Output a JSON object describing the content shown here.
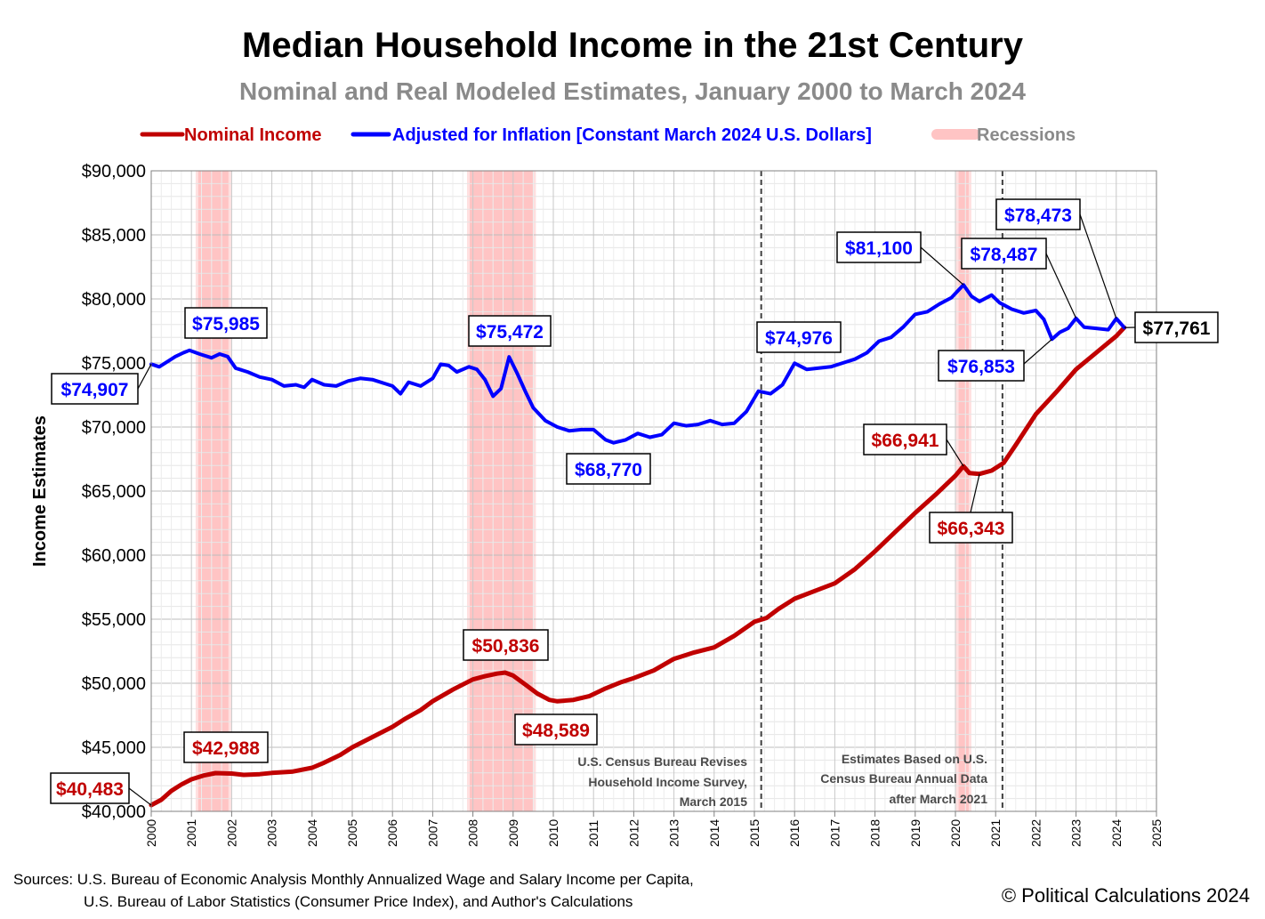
{
  "title": "Median Household Income in the 21st Century",
  "subtitle": "Nominal and Real Modeled Estimates, January 2000 to March 2024",
  "ylabel": "Income Estimates",
  "legend": [
    {
      "label": "Nominal Income",
      "color": "#c00000"
    },
    {
      "label": "Adjusted for Inflation [Constant March 2024 U.S. Dollars]",
      "color": "#0000ff"
    },
    {
      "label": "Recessions",
      "color": "#ffb3b3",
      "text_color": "#8a8a8a"
    }
  ],
  "notes": [
    [
      "U.S. Census Bureau Revises",
      "Household Income Survey,",
      "March 2015"
    ],
    [
      "Estimates Based on U.S.",
      "Census Bureau Annual Data",
      "after March 2021"
    ]
  ],
  "sources": [
    "Sources: U.S. Bureau of Economic Analysis Monthly Annualized Wage and Salary Income per Capita,",
    "U.S. Bureau of Labor Statistics (Consumer Price Index), and Author's Calculations"
  ],
  "copyright": "© Political Calculations 2024",
  "chart_data": {
    "type": "line",
    "x_range": [
      2000,
      2025
    ],
    "x_ticks": [
      "2000",
      "2001",
      "2002",
      "2003",
      "2004",
      "2005",
      "2006",
      "2007",
      "2008",
      "2009",
      "2010",
      "2011",
      "2012",
      "2013",
      "2014",
      "2015",
      "2016",
      "2017",
      "2018",
      "2019",
      "2020",
      "2021",
      "2022",
      "2023",
      "2024",
      "2025"
    ],
    "ylim": [
      40000,
      90000
    ],
    "y_ticks": [
      40000,
      45000,
      50000,
      55000,
      60000,
      65000,
      70000,
      75000,
      80000,
      85000,
      90000
    ],
    "y_tick_labels": [
      "$40,000",
      "$45,000",
      "$50,000",
      "$55,000",
      "$60,000",
      "$65,000",
      "$70,000",
      "$75,000",
      "$80,000",
      "$85,000",
      "$90,000"
    ],
    "grid": true,
    "legend_position": "top",
    "recessions": [
      [
        2001.17,
        2001.92
      ],
      [
        2007.92,
        2009.5
      ],
      [
        2020.08,
        2020.33
      ]
    ],
    "vertical_markers": [
      2015.17,
      2021.17
    ],
    "series": [
      {
        "name": "Nominal Income",
        "color": "#c00000",
        "points": [
          [
            2000.0,
            40483
          ],
          [
            2000.25,
            40900
          ],
          [
            2000.5,
            41600
          ],
          [
            2000.75,
            42100
          ],
          [
            2001.0,
            42500
          ],
          [
            2001.3,
            42800
          ],
          [
            2001.6,
            42988
          ],
          [
            2002.0,
            42950
          ],
          [
            2002.3,
            42850
          ],
          [
            2002.7,
            42900
          ],
          [
            2003.0,
            43000
          ],
          [
            2003.5,
            43100
          ],
          [
            2004.0,
            43400
          ],
          [
            2004.3,
            43800
          ],
          [
            2004.7,
            44400
          ],
          [
            2005.0,
            45000
          ],
          [
            2005.5,
            45800
          ],
          [
            2006.0,
            46600
          ],
          [
            2006.3,
            47200
          ],
          [
            2006.7,
            47900
          ],
          [
            2007.0,
            48600
          ],
          [
            2007.5,
            49500
          ],
          [
            2008.0,
            50300
          ],
          [
            2008.3,
            50550
          ],
          [
            2008.6,
            50750
          ],
          [
            2008.8,
            50836
          ],
          [
            2009.0,
            50600
          ],
          [
            2009.3,
            49900
          ],
          [
            2009.6,
            49200
          ],
          [
            2009.9,
            48700
          ],
          [
            2010.1,
            48589
          ],
          [
            2010.5,
            48700
          ],
          [
            2010.9,
            49000
          ],
          [
            2011.3,
            49600
          ],
          [
            2011.7,
            50100
          ],
          [
            2012.0,
            50400
          ],
          [
            2012.5,
            51000
          ],
          [
            2013.0,
            51900
          ],
          [
            2013.5,
            52400
          ],
          [
            2014.0,
            52800
          ],
          [
            2014.5,
            53700
          ],
          [
            2015.0,
            54800
          ],
          [
            2015.3,
            55100
          ],
          [
            2015.6,
            55800
          ],
          [
            2016.0,
            56600
          ],
          [
            2016.5,
            57200
          ],
          [
            2017.0,
            57800
          ],
          [
            2017.5,
            58900
          ],
          [
            2018.0,
            60300
          ],
          [
            2018.5,
            61800
          ],
          [
            2019.0,
            63300
          ],
          [
            2019.5,
            64700
          ],
          [
            2020.0,
            66200
          ],
          [
            2020.2,
            66941
          ],
          [
            2020.35,
            66400
          ],
          [
            2020.6,
            66343
          ],
          [
            2020.9,
            66600
          ],
          [
            2021.2,
            67200
          ],
          [
            2021.5,
            68600
          ],
          [
            2022.0,
            71000
          ],
          [
            2022.5,
            72700
          ],
          [
            2023.0,
            74500
          ],
          [
            2023.5,
            75800
          ],
          [
            2024.0,
            77100
          ],
          [
            2024.2,
            77761
          ]
        ]
      },
      {
        "name": "Adjusted for Inflation [Constant March 2024 U.S. Dollars]",
        "color": "#0000ff",
        "points": [
          [
            2000.0,
            74907
          ],
          [
            2000.2,
            74700
          ],
          [
            2000.4,
            75100
          ],
          [
            2000.6,
            75500
          ],
          [
            2000.8,
            75800
          ],
          [
            2000.95,
            75985
          ],
          [
            2001.2,
            75700
          ],
          [
            2001.5,
            75400
          ],
          [
            2001.7,
            75700
          ],
          [
            2001.9,
            75500
          ],
          [
            2002.1,
            74600
          ],
          [
            2002.4,
            74300
          ],
          [
            2002.7,
            73900
          ],
          [
            2003.0,
            73700
          ],
          [
            2003.3,
            73200
          ],
          [
            2003.6,
            73300
          ],
          [
            2003.8,
            73100
          ],
          [
            2004.0,
            73700
          ],
          [
            2004.3,
            73300
          ],
          [
            2004.6,
            73200
          ],
          [
            2004.9,
            73600
          ],
          [
            2005.2,
            73800
          ],
          [
            2005.5,
            73700
          ],
          [
            2005.8,
            73400
          ],
          [
            2006.0,
            73200
          ],
          [
            2006.2,
            72600
          ],
          [
            2006.4,
            73500
          ],
          [
            2006.7,
            73200
          ],
          [
            2007.0,
            73800
          ],
          [
            2007.2,
            74900
          ],
          [
            2007.4,
            74800
          ],
          [
            2007.6,
            74300
          ],
          [
            2007.9,
            74700
          ],
          [
            2008.1,
            74500
          ],
          [
            2008.3,
            73700
          ],
          [
            2008.5,
            72400
          ],
          [
            2008.7,
            73000
          ],
          [
            2008.9,
            75472
          ],
          [
            2009.1,
            74200
          ],
          [
            2009.3,
            72800
          ],
          [
            2009.5,
            71500
          ],
          [
            2009.8,
            70500
          ],
          [
            2010.1,
            70000
          ],
          [
            2010.4,
            69700
          ],
          [
            2010.7,
            69800
          ],
          [
            2011.0,
            69800
          ],
          [
            2011.3,
            69000
          ],
          [
            2011.5,
            68770
          ],
          [
            2011.8,
            69000
          ],
          [
            2012.1,
            69500
          ],
          [
            2012.4,
            69200
          ],
          [
            2012.7,
            69400
          ],
          [
            2013.0,
            70300
          ],
          [
            2013.3,
            70100
          ],
          [
            2013.6,
            70200
          ],
          [
            2013.9,
            70500
          ],
          [
            2014.2,
            70200
          ],
          [
            2014.5,
            70300
          ],
          [
            2014.8,
            71200
          ],
          [
            2015.1,
            72800
          ],
          [
            2015.4,
            72600
          ],
          [
            2015.7,
            73300
          ],
          [
            2016.0,
            74976
          ],
          [
            2016.3,
            74500
          ],
          [
            2016.6,
            74600
          ],
          [
            2016.9,
            74700
          ],
          [
            2017.2,
            75000
          ],
          [
            2017.5,
            75300
          ],
          [
            2017.8,
            75800
          ],
          [
            2018.1,
            76700
          ],
          [
            2018.4,
            77000
          ],
          [
            2018.7,
            77800
          ],
          [
            2019.0,
            78800
          ],
          [
            2019.3,
            79000
          ],
          [
            2019.6,
            79600
          ],
          [
            2019.9,
            80100
          ],
          [
            2020.2,
            81100
          ],
          [
            2020.4,
            80200
          ],
          [
            2020.6,
            79800
          ],
          [
            2020.9,
            80300
          ],
          [
            2021.1,
            79700
          ],
          [
            2021.4,
            79200
          ],
          [
            2021.7,
            78900
          ],
          [
            2022.0,
            79100
          ],
          [
            2022.2,
            78400
          ],
          [
            2022.4,
            76853
          ],
          [
            2022.6,
            77400
          ],
          [
            2022.8,
            77700
          ],
          [
            2023.0,
            78487
          ],
          [
            2023.2,
            77800
          ],
          [
            2023.5,
            77700
          ],
          [
            2023.8,
            77600
          ],
          [
            2024.0,
            78473
          ],
          [
            2024.2,
            77761
          ]
        ]
      }
    ],
    "annotations": [
      {
        "text": "$40,483",
        "series": 0,
        "color": "#c00000"
      },
      {
        "text": "$42,988",
        "series": 0,
        "color": "#c00000"
      },
      {
        "text": "$50,836",
        "series": 0,
        "color": "#c00000"
      },
      {
        "text": "$48,589",
        "series": 0,
        "color": "#c00000"
      },
      {
        "text": "$66,941",
        "series": 0,
        "color": "#c00000"
      },
      {
        "text": "$66,343",
        "series": 0,
        "color": "#c00000"
      },
      {
        "text": "$74,907",
        "series": 1,
        "color": "#0000ff"
      },
      {
        "text": "$75,985",
        "series": 1,
        "color": "#0000ff"
      },
      {
        "text": "$75,472",
        "series": 1,
        "color": "#0000ff"
      },
      {
        "text": "$68,770",
        "series": 1,
        "color": "#0000ff"
      },
      {
        "text": "$74,976",
        "series": 1,
        "color": "#0000ff"
      },
      {
        "text": "$81,100",
        "series": 1,
        "color": "#0000ff"
      },
      {
        "text": "$78,487",
        "series": 1,
        "color": "#0000ff"
      },
      {
        "text": "$76,853",
        "series": 1,
        "color": "#0000ff"
      },
      {
        "text": "$78,473",
        "series": 1,
        "color": "#0000ff"
      },
      {
        "text": "$77,761",
        "series": 1,
        "color": "#000000"
      }
    ]
  }
}
